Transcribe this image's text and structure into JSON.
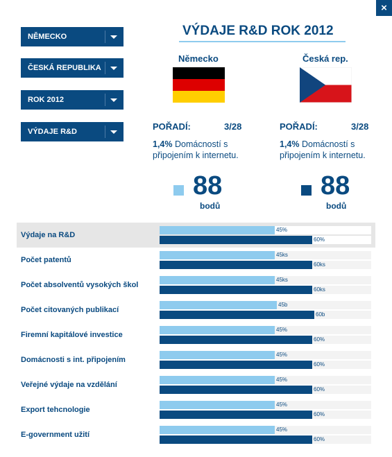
{
  "close_label": "×",
  "dropdowns": [
    {
      "label": "NĚMECKO"
    },
    {
      "label": "ČESKÁ REPUBLIKA"
    },
    {
      "label": "ROK 2012"
    },
    {
      "label": "VÝDAJE R&D"
    }
  ],
  "title": "VÝDAJE R&D ROK 2012",
  "left": {
    "country": "Německo",
    "rank_label": "POŘADÍ:",
    "rank_value": "3/28",
    "desc_pct": "1,4%",
    "desc_text": " Domácností s připojením k internetu.",
    "score": "88",
    "points_label": "bodů",
    "color": "#8ecbee"
  },
  "right": {
    "country": "Česká rep.",
    "rank_label": "POŘADÍ:",
    "rank_value": "3/28",
    "desc_pct": "1,4%",
    "desc_text": " Domácností s připojením k internetu.",
    "score": "88",
    "points_label": "bodů",
    "color": "#0a4a80"
  },
  "rows": [
    {
      "label": "Výdaje na R&D",
      "de_label": "45%",
      "cz_label": "60%",
      "de_pct": 0.545,
      "cz_pct": 0.72
    },
    {
      "label": "Počet patentů",
      "de_label": "45ks",
      "cz_label": "60ks",
      "de_pct": 0.545,
      "cz_pct": 0.72
    },
    {
      "label": "Počet absolventů vysokých škol",
      "de_label": "45ks",
      "cz_label": "60ks",
      "de_pct": 0.545,
      "cz_pct": 0.72
    },
    {
      "label": "Počet citovaných publikací",
      "de_label": "45b",
      "cz_label": "60b",
      "de_pct": 0.555,
      "cz_pct": 0.73
    },
    {
      "label": "Firemní kapitálové investice",
      "de_label": "45%",
      "cz_label": "60%",
      "de_pct": 0.545,
      "cz_pct": 0.72
    },
    {
      "label": "Domácnosti s  int. připojením",
      "de_label": "45%",
      "cz_label": "60%",
      "de_pct": 0.545,
      "cz_pct": 0.72
    },
    {
      "label": "Veřejné výdaje na vzdělání",
      "de_label": "45%",
      "cz_label": "60%",
      "de_pct": 0.545,
      "cz_pct": 0.72
    },
    {
      "label": "Export tehcnologie",
      "de_label": "45%",
      "cz_label": "60%",
      "de_pct": 0.545,
      "cz_pct": 0.72
    },
    {
      "label": "E-government užití",
      "de_label": "45%",
      "cz_label": "60%",
      "de_pct": 0.545,
      "cz_pct": 0.72
    }
  ]
}
